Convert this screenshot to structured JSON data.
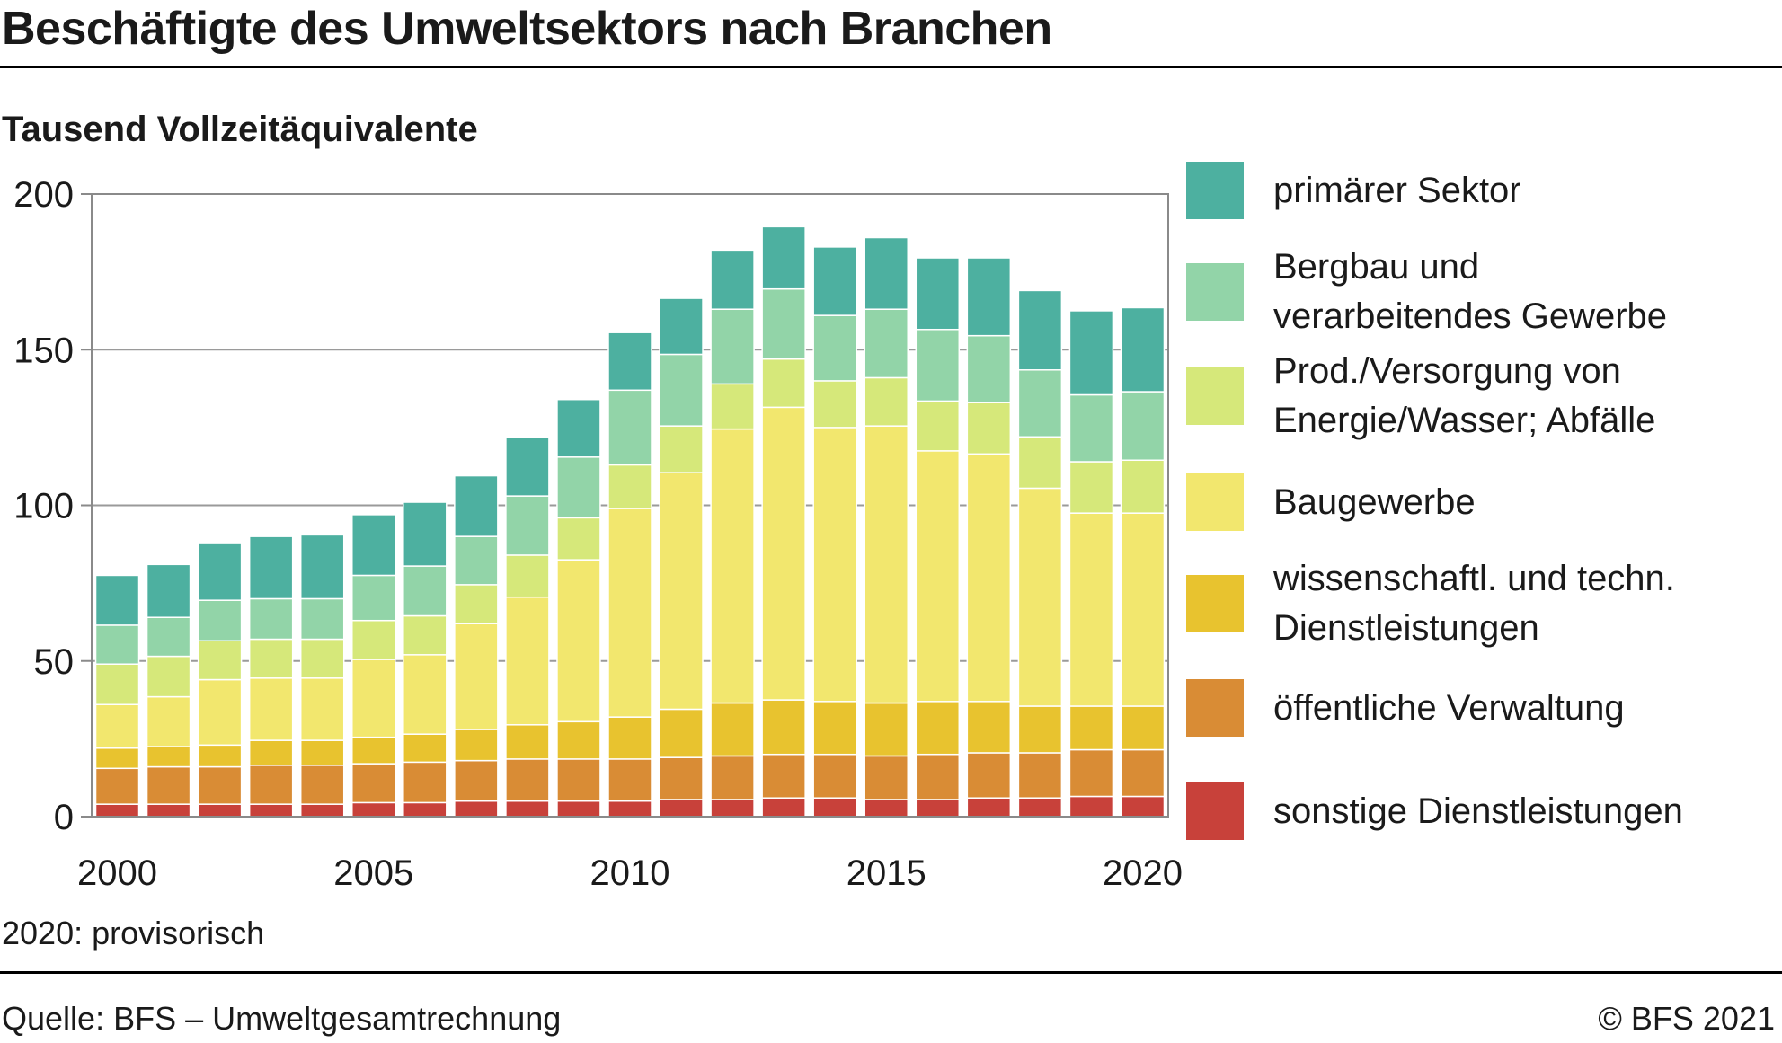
{
  "title": "Beschäftigte des Umweltsektors nach Branchen",
  "subtitle": "Tausend Vollzeitäquivalente",
  "note": "2020: provisorisch",
  "source": "Quelle: BFS – Umweltgesamtrechnung",
  "copyright": "© BFS 2021",
  "legend": [
    {
      "label": "primärer Sektor"
    },
    {
      "label": "Bergbau und verarbeitendes Gewerbe"
    },
    {
      "label": "Prod./Versorgung von Energie/Wasser; Abfälle"
    },
    {
      "label": "Baugewerbe"
    },
    {
      "label": "wissenschaftl. und techn. Dienstleistungen"
    },
    {
      "label": "öffentliche Verwaltung"
    },
    {
      "label": "sonstige Dienstleistungen"
    }
  ],
  "chart_data": {
    "type": "bar",
    "stacked": true,
    "ylabel": "Tausend Vollzeitäquivalente",
    "ylim": [
      0,
      200
    ],
    "yticks": [
      "0",
      "50",
      "100",
      "150",
      "200"
    ],
    "xticks": [
      "2000",
      "2005",
      "2010",
      "2015",
      "2020"
    ],
    "grid": true,
    "legend_position": "right",
    "categories": [
      "2000",
      "2001",
      "2002",
      "2003",
      "2004",
      "2005",
      "2006",
      "2007",
      "2008",
      "2009",
      "2010",
      "2011",
      "2012",
      "2013",
      "2014",
      "2015",
      "2016",
      "2017",
      "2018",
      "2019",
      "2020"
    ],
    "series": [
      {
        "name": "sonstige Dienstleistungen",
        "color": "#c8413a",
        "values": [
          4,
          4,
          4,
          4,
          4,
          4.5,
          4.5,
          5,
          5,
          5,
          5,
          5.5,
          5.5,
          6,
          6,
          5.5,
          5.5,
          6,
          6,
          6.5,
          6.5
        ]
      },
      {
        "name": "öffentliche Verwaltung",
        "color": "#d98c35",
        "values": [
          11.5,
          12,
          12,
          12.5,
          12.5,
          12.5,
          13,
          13,
          13.5,
          13.5,
          13.5,
          13.5,
          14,
          14,
          14,
          14,
          14.5,
          14.5,
          14.5,
          15,
          15
        ]
      },
      {
        "name": "wissenschaftl. und techn. Dienstleistungen",
        "color": "#e8c32f",
        "values": [
          6.5,
          6.5,
          7,
          8,
          8,
          8.5,
          9,
          10,
          11,
          12,
          13.5,
          15.5,
          17,
          17.5,
          17,
          17,
          17,
          16.5,
          15,
          14,
          14
        ]
      },
      {
        "name": "Baugewerbe",
        "color": "#f2e76e",
        "values": [
          14,
          16,
          21,
          20,
          20,
          25,
          25.5,
          34,
          41,
          52,
          67,
          76,
          88,
          94,
          88,
          89,
          80.5,
          79.5,
          70,
          62,
          62
        ]
      },
      {
        "name": "Prod./Versorgung von Energie/Wasser; Abfälle",
        "color": "#d6e87a",
        "values": [
          13,
          13,
          12.5,
          12.5,
          12.5,
          12.5,
          12.5,
          12.5,
          13.5,
          13.5,
          14,
          15,
          14.5,
          15.5,
          15,
          15.5,
          16,
          16.5,
          16.5,
          16.5,
          17
        ]
      },
      {
        "name": "Bergbau und verarbeitendes Gewerbe",
        "color": "#92d4a8",
        "values": [
          12.5,
          12.5,
          13,
          13,
          13,
          14.5,
          16,
          15.5,
          19,
          19.5,
          24,
          23,
          24,
          22.5,
          21,
          22,
          23,
          21.5,
          21.5,
          21.5,
          22
        ]
      },
      {
        "name": "primärer Sektor",
        "color": "#4db0a0",
        "values": [
          16,
          17,
          18.5,
          20,
          20.5,
          19.5,
          20.5,
          19.5,
          19,
          18.5,
          18.5,
          18,
          19,
          20,
          22,
          23,
          23,
          25,
          25.5,
          27,
          27
        ]
      }
    ]
  }
}
